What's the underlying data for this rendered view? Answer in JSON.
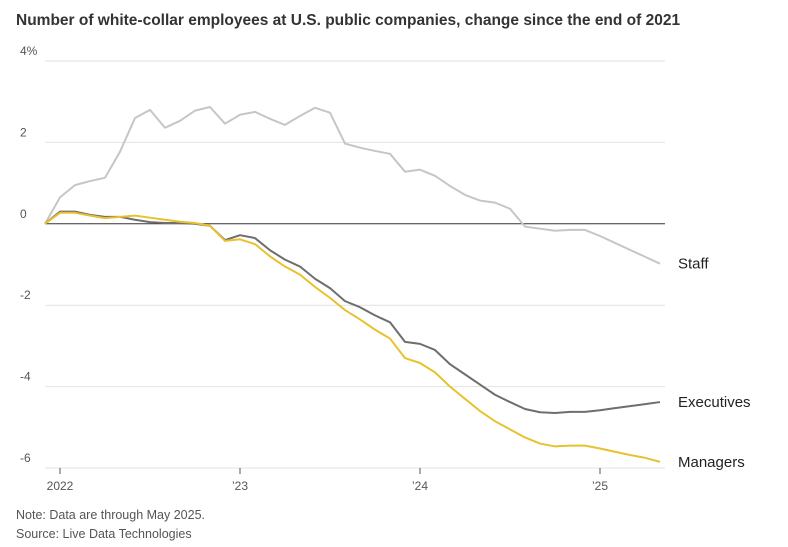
{
  "chart_data": {
    "type": "line",
    "title": "Number of white-collar employees at U.S. public companies, change since the end of 2021",
    "categories": [
      null,
      "2022",
      null,
      null,
      null,
      null,
      null,
      null,
      null,
      null,
      null,
      null,
      null,
      "’23",
      null,
      null,
      null,
      null,
      null,
      null,
      null,
      null,
      null,
      null,
      null,
      "’24",
      null,
      null,
      null,
      null,
      null,
      null,
      null,
      null,
      null,
      null,
      null,
      "’25",
      null,
      null,
      null,
      null
    ],
    "series": [
      {
        "name": "Staff",
        "color": "#c6c6c6",
        "values": [
          0,
          0.65,
          0.95,
          1.05,
          1.13,
          1.77,
          2.6,
          2.8,
          2.36,
          2.53,
          2.78,
          2.87,
          2.46,
          2.68,
          2.75,
          2.58,
          2.43,
          2.65,
          2.85,
          2.73,
          1.97,
          1.87,
          1.79,
          1.72,
          1.28,
          1.33,
          1.18,
          0.93,
          0.71,
          0.57,
          0.52,
          0.37,
          -0.07,
          -0.12,
          -0.17,
          -0.15,
          -0.15,
          -0.3,
          -0.47,
          -0.64,
          -0.81,
          -0.98
        ]
      },
      {
        "name": "Executives",
        "color": "#6e6e6e",
        "values": [
          0,
          0.3,
          0.3,
          0.22,
          0.17,
          0.17,
          0.1,
          0.04,
          0.02,
          0.02,
          0,
          -0.05,
          -0.4,
          -0.28,
          -0.35,
          -0.65,
          -0.88,
          -1.05,
          -1.35,
          -1.58,
          -1.9,
          -2.05,
          -2.25,
          -2.42,
          -2.9,
          -2.95,
          -3.1,
          -3.45,
          -3.7,
          -3.95,
          -4.2,
          -4.38,
          -4.55,
          -4.63,
          -4.65,
          -4.62,
          -4.62,
          -4.58,
          -4.53,
          -4.48,
          -4.43,
          -4.38
        ]
      },
      {
        "name": "Managers",
        "color": "#e8c22e",
        "values": [
          0,
          0.27,
          0.27,
          0.2,
          0.14,
          0.17,
          0.2,
          0.15,
          0.1,
          0.05,
          0.02,
          -0.05,
          -0.42,
          -0.38,
          -0.5,
          -0.8,
          -1.05,
          -1.25,
          -1.55,
          -1.82,
          -2.12,
          -2.35,
          -2.6,
          -2.82,
          -3.3,
          -3.42,
          -3.65,
          -4.0,
          -4.3,
          -4.6,
          -4.85,
          -5.05,
          -5.25,
          -5.4,
          -5.47,
          -5.45,
          -5.45,
          -5.52,
          -5.6,
          -5.68,
          -5.75,
          -5.85
        ]
      }
    ],
    "ylim": [
      -6,
      4
    ],
    "yticks": [
      {
        "value": 4,
        "label": "4%"
      },
      2,
      0,
      -2,
      -4,
      -6
    ],
    "grid": true,
    "note": "Note: Data are through May 2025.",
    "source": "Source: Live Data Technologies"
  }
}
